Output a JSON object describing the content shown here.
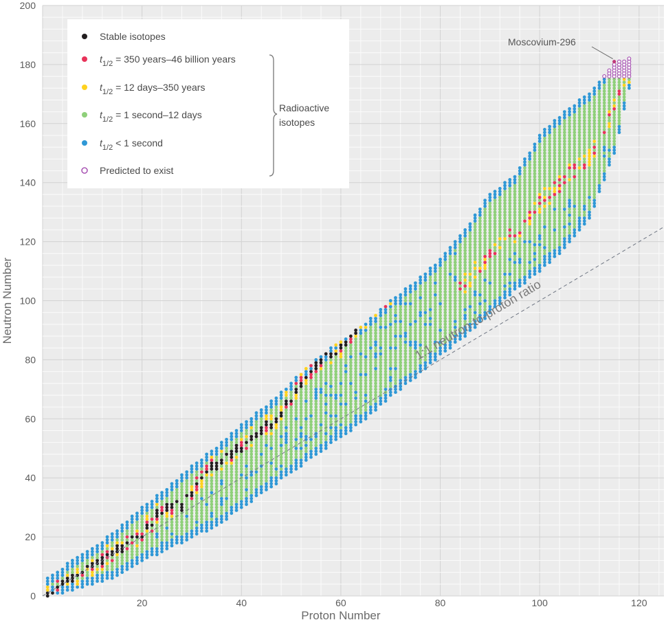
{
  "chart_data": {
    "type": "scatter",
    "xlabel": "Proton Number",
    "ylabel": "Neutron Number",
    "xlim": [
      0,
      125
    ],
    "ylim": [
      0,
      200
    ],
    "x_ticks": [
      20,
      40,
      60,
      80,
      100,
      120
    ],
    "y_ticks": [
      0,
      20,
      40,
      60,
      80,
      100,
      120,
      140,
      160,
      180,
      200
    ],
    "grid": true,
    "legend_position": "top-left",
    "legend": [
      {
        "key": "stable",
        "label": "Stable isotopes",
        "color": "#231f20",
        "marker": "filled"
      },
      {
        "key": "long",
        "prefix": "t",
        "sub": "1/2",
        "label": " = 350 years–46 billion years",
        "color": "#e8335a",
        "marker": "filled"
      },
      {
        "key": "mid",
        "prefix": "t",
        "sub": "1/2",
        "label": " = 12 days–350 years",
        "color": "#ffd21f",
        "marker": "filled"
      },
      {
        "key": "short",
        "prefix": "t",
        "sub": "1/2",
        "label": " = 1 second–12 days",
        "color": "#8fd07a",
        "marker": "filled"
      },
      {
        "key": "vshort",
        "prefix": "t",
        "sub": "1/2",
        "label": " < 1 second",
        "color": "#2f98d6",
        "marker": "filled"
      },
      {
        "key": "predicted",
        "label": "Predicted to exist",
        "color": "#9b3aa8",
        "marker": "open"
      }
    ],
    "bracket_label": [
      "Radioactive",
      "isotopes"
    ],
    "reference_line": {
      "label": "1:1 neutron-to-proton ratio",
      "from": [
        0,
        0
      ],
      "to": [
        125,
        125
      ]
    },
    "annotation": {
      "label": "Moscovium-296",
      "point": [
        115,
        181
      ]
    },
    "stable_band": [
      [
        1,
        0
      ],
      [
        2,
        1
      ],
      [
        3,
        3
      ],
      [
        4,
        5
      ],
      [
        5,
        5
      ],
      [
        6,
        6
      ],
      [
        7,
        7
      ],
      [
        8,
        8
      ],
      [
        9,
        10
      ],
      [
        10,
        10
      ],
      [
        11,
        12
      ],
      [
        12,
        12
      ],
      [
        13,
        14
      ],
      [
        14,
        14
      ],
      [
        15,
        16
      ],
      [
        16,
        16
      ],
      [
        17,
        18
      ],
      [
        18,
        20
      ],
      [
        19,
        20
      ],
      [
        20,
        20
      ],
      [
        21,
        24
      ],
      [
        22,
        24
      ],
      [
        23,
        28
      ],
      [
        24,
        28
      ],
      [
        25,
        30
      ],
      [
        26,
        30
      ],
      [
        27,
        32
      ],
      [
        28,
        30
      ],
      [
        29,
        34
      ],
      [
        30,
        34
      ],
      [
        31,
        38
      ],
      [
        32,
        40
      ],
      [
        33,
        42
      ],
      [
        34,
        44
      ],
      [
        35,
        44
      ],
      [
        36,
        46
      ],
      [
        37,
        48
      ],
      [
        38,
        48
      ],
      [
        39,
        50
      ],
      [
        40,
        50
      ],
      [
        41,
        52
      ],
      [
        42,
        54
      ],
      [
        43,
        55
      ],
      [
        44,
        56
      ],
      [
        45,
        58
      ],
      [
        46,
        58
      ],
      [
        47,
        60
      ],
      [
        48,
        62
      ],
      [
        49,
        66
      ],
      [
        50,
        66
      ],
      [
        51,
        70
      ],
      [
        52,
        72
      ],
      [
        53,
        74
      ],
      [
        54,
        76
      ],
      [
        55,
        78
      ],
      [
        56,
        80
      ],
      [
        57,
        82
      ],
      [
        58,
        82
      ],
      [
        59,
        82
      ],
      [
        60,
        84
      ],
      [
        61,
        86
      ],
      [
        62,
        88
      ],
      [
        63,
        90
      ],
      [
        64,
        92
      ],
      [
        65,
        94
      ],
      [
        66,
        96
      ],
      [
        67,
        98
      ],
      [
        68,
        98
      ],
      [
        69,
        100
      ],
      [
        70,
        102
      ],
      [
        71,
        104
      ],
      [
        72,
        106
      ],
      [
        73,
        108
      ],
      [
        74,
        108
      ],
      [
        75,
        110
      ],
      [
        76,
        114
      ],
      [
        77,
        116
      ],
      [
        78,
        116
      ],
      [
        79,
        118
      ],
      [
        80,
        120
      ],
      [
        81,
        122
      ],
      [
        82,
        124
      ],
      [
        83,
        126
      ]
    ],
    "neutron_range": [
      [
        1,
        0,
        6
      ],
      [
        3,
        1,
        8
      ],
      [
        6,
        2,
        12
      ],
      [
        10,
        4,
        16
      ],
      [
        15,
        7,
        22
      ],
      [
        20,
        12,
        30
      ],
      [
        25,
        16,
        36
      ],
      [
        30,
        20,
        44
      ],
      [
        35,
        24,
        50
      ],
      [
        40,
        30,
        58
      ],
      [
        45,
        36,
        64
      ],
      [
        50,
        42,
        72
      ],
      [
        55,
        48,
        80
      ],
      [
        60,
        54,
        86
      ],
      [
        65,
        60,
        92
      ],
      [
        70,
        68,
        100
      ],
      [
        75,
        74,
        106
      ],
      [
        80,
        82,
        114
      ],
      [
        85,
        88,
        124
      ],
      [
        90,
        96,
        136
      ],
      [
        95,
        104,
        142
      ],
      [
        100,
        110,
        156
      ],
      [
        105,
        118,
        164
      ],
      [
        110,
        128,
        170
      ],
      [
        115,
        150,
        180
      ],
      [
        118,
        172,
        182
      ]
    ]
  }
}
